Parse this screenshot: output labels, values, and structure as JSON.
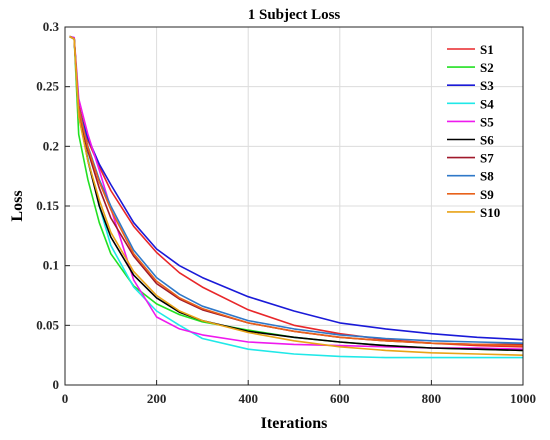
{
  "chart_data": {
    "type": "line",
    "title": "1 Subject Loss",
    "xlabel": "Iterations",
    "ylabel": "Loss",
    "xlim": [
      0,
      1000
    ],
    "ylim": [
      0,
      0.3
    ],
    "xticks": [
      0,
      200,
      400,
      600,
      800,
      1000
    ],
    "yticks": [
      0,
      0.05,
      0.1,
      0.15,
      0.2,
      0.25,
      0.3
    ],
    "xtick_labels": [
      "0",
      "200",
      "400",
      "600",
      "800",
      "1000"
    ],
    "ytick_labels": [
      "0",
      "0.05",
      "0.1",
      "0.15",
      "0.2",
      "0.25",
      "0.3"
    ],
    "grid": true,
    "legend_position": "top-right",
    "x": [
      10,
      20,
      30,
      50,
      75,
      100,
      150,
      200,
      250,
      300,
      400,
      500,
      600,
      700,
      800,
      900,
      1000
    ],
    "series": [
      {
        "name": "S1",
        "color": "#e8272a",
        "values": [
          0.292,
          0.29,
          0.235,
          0.205,
          0.183,
          0.163,
          0.133,
          0.111,
          0.094,
          0.082,
          0.063,
          0.05,
          0.043,
          0.038,
          0.035,
          0.033,
          0.032
        ]
      },
      {
        "name": "S2",
        "color": "#22e022",
        "values": [
          0.292,
          0.29,
          0.21,
          0.172,
          0.136,
          0.11,
          0.083,
          0.068,
          0.059,
          0.053,
          0.046,
          0.04,
          0.036,
          0.033,
          0.031,
          0.03,
          0.029
        ]
      },
      {
        "name": "S3",
        "color": "#1a1ad8",
        "values": [
          0.292,
          0.291,
          0.23,
          0.207,
          0.185,
          0.168,
          0.136,
          0.114,
          0.1,
          0.09,
          0.074,
          0.062,
          0.052,
          0.047,
          0.043,
          0.04,
          0.038
        ]
      },
      {
        "name": "S4",
        "color": "#20e8e8",
        "values": [
          0.292,
          0.29,
          0.225,
          0.19,
          0.15,
          0.117,
          0.082,
          0.062,
          0.05,
          0.039,
          0.03,
          0.026,
          0.024,
          0.023,
          0.023,
          0.023,
          0.023
        ]
      },
      {
        "name": "S5",
        "color": "#ee1aee",
        "values": [
          0.292,
          0.291,
          0.24,
          0.21,
          0.18,
          0.148,
          0.088,
          0.057,
          0.047,
          0.042,
          0.036,
          0.034,
          0.033,
          0.032,
          0.031,
          0.031,
          0.03
        ]
      },
      {
        "name": "S6",
        "color": "#000000",
        "values": [
          0.292,
          0.29,
          0.228,
          0.188,
          0.15,
          0.124,
          0.092,
          0.073,
          0.061,
          0.054,
          0.045,
          0.04,
          0.036,
          0.033,
          0.031,
          0.03,
          0.029
        ]
      },
      {
        "name": "S7",
        "color": "#a0192b",
        "values": [
          0.292,
          0.29,
          0.23,
          0.196,
          0.165,
          0.14,
          0.108,
          0.085,
          0.072,
          0.063,
          0.052,
          0.045,
          0.04,
          0.037,
          0.035,
          0.034,
          0.034
        ]
      },
      {
        "name": "S8",
        "color": "#2f78c8",
        "values": [
          0.292,
          0.29,
          0.232,
          0.2,
          0.172,
          0.15,
          0.113,
          0.09,
          0.076,
          0.066,
          0.054,
          0.047,
          0.042,
          0.039,
          0.037,
          0.036,
          0.035
        ]
      },
      {
        "name": "S9",
        "color": "#e8621a",
        "values": [
          0.292,
          0.29,
          0.231,
          0.199,
          0.17,
          0.147,
          0.11,
          0.087,
          0.073,
          0.064,
          0.052,
          0.045,
          0.04,
          0.037,
          0.035,
          0.034,
          0.033
        ]
      },
      {
        "name": "S10",
        "color": "#e8a317",
        "values": [
          0.292,
          0.29,
          0.225,
          0.188,
          0.155,
          0.128,
          0.095,
          0.075,
          0.062,
          0.054,
          0.044,
          0.037,
          0.032,
          0.029,
          0.027,
          0.026,
          0.025
        ]
      }
    ]
  }
}
